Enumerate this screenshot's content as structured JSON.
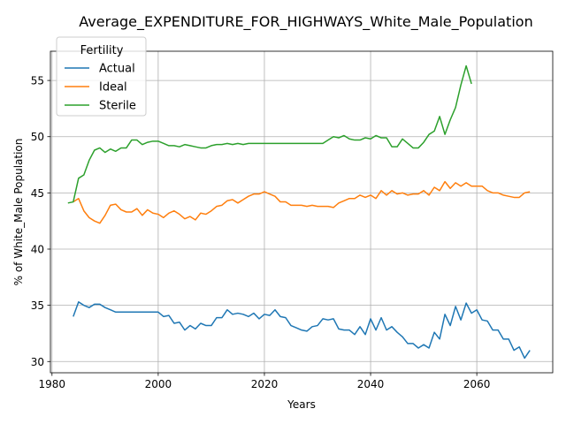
{
  "chart_data": {
    "type": "line",
    "title": "Average_EXPENDITURE_FOR_HIGHWAYS_White_Male_Population",
    "xlabel": "Years",
    "ylabel": "% of White_Male Population",
    "xlim": [
      1979.7,
      2074.3
    ],
    "ylim": [
      29.0,
      57.6
    ],
    "xticks": [
      1980,
      2000,
      2020,
      2040,
      2060
    ],
    "yticks": [
      30,
      35,
      40,
      45,
      50,
      55
    ],
    "grid": true,
    "legend": {
      "title": "Fertility",
      "placement": "top-left"
    },
    "series": [
      {
        "name": "Actual",
        "color": "#1f77b4",
        "x": [
          1984,
          1985,
          1986,
          1987,
          1988,
          1989,
          1990,
          1991,
          1992,
          1993,
          1994,
          1995,
          1996,
          1997,
          1998,
          1999,
          2000,
          2001,
          2002,
          2003,
          2004,
          2005,
          2006,
          2007,
          2008,
          2009,
          2010,
          2011,
          2012,
          2013,
          2014,
          2015,
          2016,
          2017,
          2018,
          2019,
          2020,
          2021,
          2022,
          2023,
          2024,
          2025,
          2026,
          2027,
          2028,
          2029,
          2030,
          2031,
          2032,
          2033,
          2034,
          2035,
          2036,
          2037,
          2038,
          2039,
          2040,
          2041,
          2042,
          2043,
          2044,
          2045,
          2046,
          2047,
          2048,
          2049,
          2050,
          2051,
          2052,
          2053,
          2054,
          2055,
          2056,
          2057,
          2058,
          2059,
          2060,
          2061,
          2062,
          2063,
          2064,
          2065,
          2066,
          2067,
          2068,
          2069,
          2070
        ],
        "values": [
          34.0,
          35.3,
          35.0,
          34.8,
          35.1,
          35.1,
          34.8,
          34.6,
          34.4,
          34.4,
          34.4,
          34.4,
          34.4,
          34.4,
          34.4,
          34.4,
          34.4,
          34.0,
          34.1,
          33.4,
          33.5,
          32.8,
          33.2,
          32.9,
          33.4,
          33.2,
          33.2,
          33.9,
          33.9,
          34.6,
          34.2,
          34.3,
          34.2,
          34.0,
          34.3,
          33.8,
          34.2,
          34.1,
          34.6,
          34.0,
          33.9,
          33.2,
          33.0,
          32.8,
          32.7,
          33.1,
          33.2,
          33.8,
          33.7,
          33.8,
          32.9,
          32.8,
          32.8,
          32.4,
          33.1,
          32.4,
          33.8,
          32.8,
          33.9,
          32.8,
          33.1,
          32.6,
          32.2,
          31.6,
          31.6,
          31.2,
          31.5,
          31.2,
          32.6,
          32.0,
          34.2,
          33.2,
          34.9,
          33.7,
          35.2,
          34.3,
          34.6,
          33.7,
          33.6,
          32.8,
          32.8,
          32.0,
          32.0,
          31.0,
          31.3,
          30.3,
          31.0
        ]
      },
      {
        "name": "Ideal",
        "color": "#ff7f0e",
        "x": [
          1984,
          1985,
          1986,
          1987,
          1988,
          1989,
          1990,
          1991,
          1992,
          1993,
          1994,
          1995,
          1996,
          1997,
          1998,
          1999,
          2000,
          2001,
          2002,
          2003,
          2004,
          2005,
          2006,
          2007,
          2008,
          2009,
          2010,
          2011,
          2012,
          2013,
          2014,
          2015,
          2016,
          2017,
          2018,
          2019,
          2020,
          2021,
          2022,
          2023,
          2024,
          2025,
          2026,
          2027,
          2028,
          2029,
          2030,
          2031,
          2032,
          2033,
          2034,
          2035,
          2036,
          2037,
          2038,
          2039,
          2040,
          2041,
          2042,
          2043,
          2044,
          2045,
          2046,
          2047,
          2048,
          2049,
          2050,
          2051,
          2052,
          2053,
          2054,
          2055,
          2056,
          2057,
          2058,
          2059,
          2060,
          2061,
          2062,
          2063,
          2064,
          2065,
          2066,
          2067,
          2068,
          2069,
          2070
        ],
        "values": [
          44.2,
          44.5,
          43.4,
          42.8,
          42.5,
          42.3,
          43.0,
          43.9,
          44.0,
          43.5,
          43.3,
          43.3,
          43.6,
          43.0,
          43.5,
          43.2,
          43.1,
          42.8,
          43.2,
          43.4,
          43.1,
          42.7,
          42.9,
          42.6,
          43.2,
          43.1,
          43.4,
          43.8,
          43.9,
          44.3,
          44.4,
          44.1,
          44.4,
          44.7,
          44.9,
          44.9,
          45.1,
          44.9,
          44.7,
          44.2,
          44.2,
          43.9,
          43.9,
          43.9,
          43.8,
          43.9,
          43.8,
          43.8,
          43.8,
          43.7,
          44.1,
          44.3,
          44.5,
          44.5,
          44.8,
          44.6,
          44.8,
          44.5,
          45.2,
          44.8,
          45.2,
          44.9,
          45.0,
          44.8,
          44.9,
          44.9,
          45.2,
          44.8,
          45.5,
          45.2,
          46.0,
          45.4,
          45.9,
          45.6,
          45.9,
          45.6,
          45.6,
          45.6,
          45.2,
          45.0,
          45.0,
          44.8,
          44.7,
          44.6,
          44.6,
          45.0,
          45.1
        ]
      },
      {
        "name": "Sterile",
        "color": "#2ca02c",
        "x": [
          1983,
          1984,
          1985,
          1986,
          1987,
          1988,
          1989,
          1990,
          1991,
          1992,
          1993,
          1994,
          1995,
          1996,
          1997,
          1998,
          1999,
          2000,
          2001,
          2002,
          2003,
          2004,
          2005,
          2006,
          2007,
          2008,
          2009,
          2010,
          2011,
          2012,
          2013,
          2014,
          2015,
          2016,
          2017,
          2018,
          2019,
          2020,
          2021,
          2022,
          2023,
          2024,
          2025,
          2026,
          2027,
          2028,
          2029,
          2030,
          2031,
          2032,
          2033,
          2034,
          2035,
          2036,
          2037,
          2038,
          2039,
          2040,
          2041,
          2042,
          2043,
          2044,
          2045,
          2046,
          2047,
          2048,
          2049,
          2050,
          2051,
          2052,
          2053,
          2054,
          2055,
          2056,
          2057,
          2058,
          2059
        ],
        "values": [
          44.1,
          44.2,
          46.3,
          46.6,
          47.9,
          48.8,
          49.0,
          48.6,
          48.9,
          48.7,
          49.0,
          49.0,
          49.7,
          49.7,
          49.3,
          49.5,
          49.6,
          49.6,
          49.4,
          49.2,
          49.2,
          49.1,
          49.3,
          49.2,
          49.1,
          49.0,
          49.0,
          49.2,
          49.3,
          49.3,
          49.4,
          49.3,
          49.4,
          49.3,
          49.4,
          49.4,
          49.4,
          49.4,
          49.4,
          49.4,
          49.4,
          49.4,
          49.4,
          49.4,
          49.4,
          49.4,
          49.4,
          49.4,
          49.4,
          49.7,
          50.0,
          49.9,
          50.1,
          49.8,
          49.7,
          49.7,
          49.9,
          49.8,
          50.1,
          49.9,
          49.9,
          49.1,
          49.1,
          49.8,
          49.4,
          49.0,
          49.0,
          49.5,
          50.2,
          50.5,
          51.8,
          50.2,
          51.5,
          52.6,
          54.6,
          56.3,
          54.7
        ]
      }
    ]
  }
}
